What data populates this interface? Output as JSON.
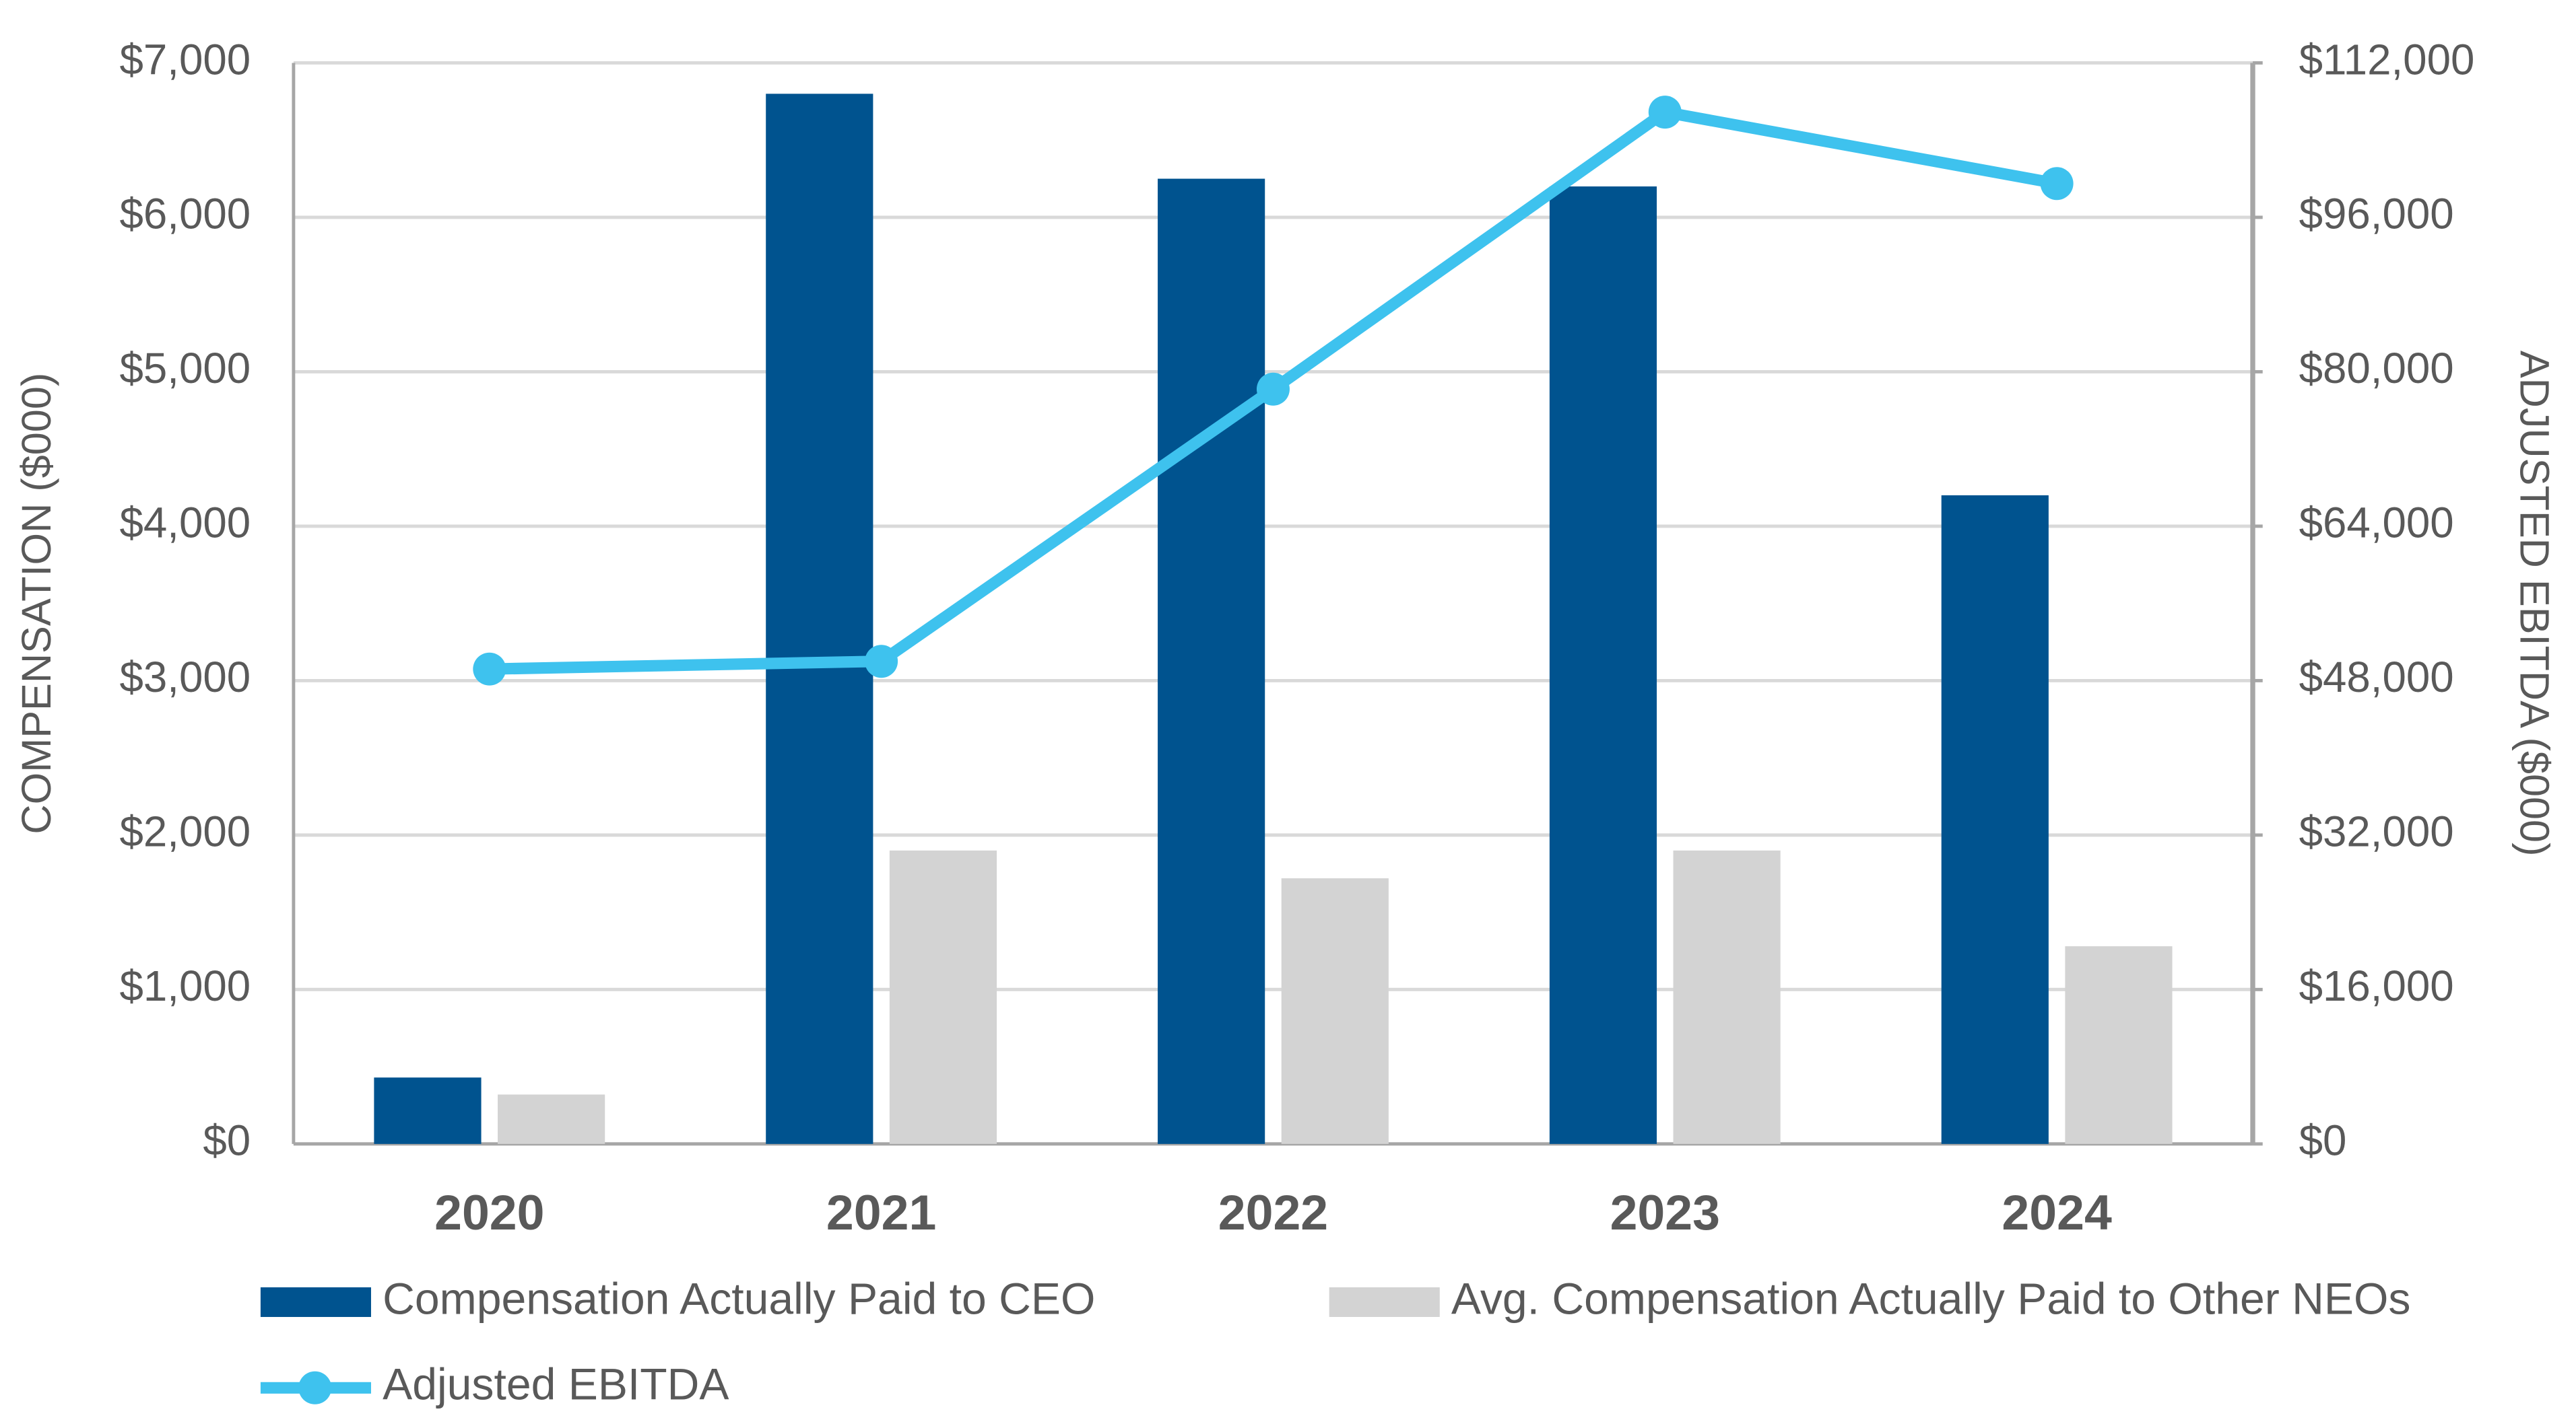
{
  "chart_data": {
    "type": "bar",
    "categories": [
      "2020",
      "2021",
      "2022",
      "2023",
      "2024"
    ],
    "y_label": "COMPENSATION ($000)",
    "y2_label": "ADJUSTED EBITDA ($000)",
    "series": [
      {
        "name": "Compensation Actually Paid to CEO",
        "color": "#00538f",
        "type": "bar",
        "values": [
          430,
          6800,
          6250,
          6200,
          4200
        ]
      },
      {
        "name": "Avg. Compensation Actually Paid to Other NEOs",
        "color": "#d3d3d3",
        "type": "bar",
        "values": [
          320,
          1900,
          1720,
          1900,
          1280
        ]
      },
      {
        "name": "Adjusted EBITDA",
        "color": "#3ec2ee",
        "type": "line",
        "axis": "y2",
        "values": [
          49200,
          50000,
          78200,
          106900,
          99500
        ]
      }
    ],
    "ylim": [
      0,
      7000
    ],
    "yticks": [
      {
        "value": 0,
        "label": "$0"
      },
      {
        "value": 1000,
        "label": "$1,000"
      },
      {
        "value": 2000,
        "label": "$2,000"
      },
      {
        "value": 3000,
        "label": "$3,000"
      },
      {
        "value": 4000,
        "label": "$4,000"
      },
      {
        "value": 5000,
        "label": "$5,000"
      },
      {
        "value": 6000,
        "label": "$6,000"
      },
      {
        "value": 7000,
        "label": "$7,000"
      }
    ],
    "y2lim": [
      0,
      112000
    ],
    "y2ticks": [
      {
        "value": 0,
        "label": "$0"
      },
      {
        "value": 16000,
        "label": "$16,000"
      },
      {
        "value": 32000,
        "label": "$32,000"
      },
      {
        "value": 48000,
        "label": "$48,000"
      },
      {
        "value": 64000,
        "label": "$64,000"
      },
      {
        "value": 80000,
        "label": "$80,000"
      },
      {
        "value": 96000,
        "label": "$96,000"
      },
      {
        "value": 112000,
        "label": "$112,000"
      }
    ],
    "grid": true,
    "legend": "bottom"
  }
}
